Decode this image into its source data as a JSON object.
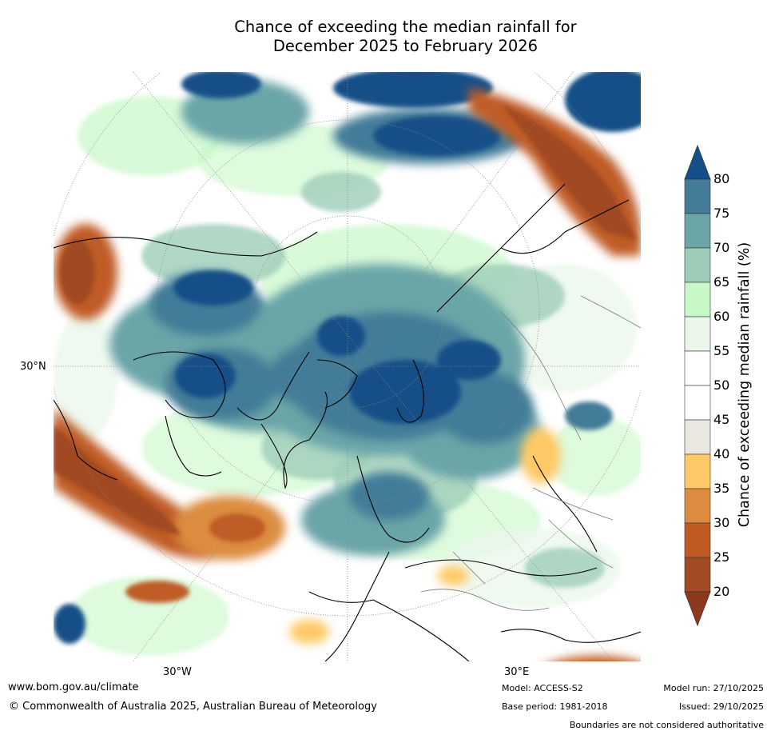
{
  "title": {
    "line1": "Chance of exceeding the median rainfall for",
    "line2": "December 2025 to February 2026"
  },
  "map": {
    "projection": "north-polar-stereographic",
    "lat_labels": [
      {
        "text": "30°N"
      }
    ],
    "lon_labels": [
      {
        "text": "30°W"
      },
      {
        "text": "30°E"
      }
    ],
    "colors": {
      "c20_25": "#a14a24",
      "c25_30": "#c05b26",
      "c30_35": "#dc8c40",
      "c35_40": "#fec966",
      "c40_45": "#ebe7e1",
      "c45_55": "#ffffff",
      "c55_60": "#ebf7eb",
      "c60_65": "#c8f8c8",
      "c65_70": "#9dcdb8",
      "c70_75": "#6ba5a8",
      "c75_80": "#437b98",
      "c80_plus": "#134f88",
      "c_below20": "#8e3820"
    }
  },
  "colorbar": {
    "label": "Chance of exceeding median rainfall (%)",
    "ticks": [
      "80",
      "75",
      "70",
      "65",
      "60",
      "55",
      "50",
      "45",
      "40",
      "35",
      "30",
      "25",
      "20"
    ],
    "segments": [
      {
        "range": "80+",
        "color": "#134f88"
      },
      {
        "range": "75-80",
        "color": "#437b98"
      },
      {
        "range": "70-75",
        "color": "#6ba5a8"
      },
      {
        "range": "65-70",
        "color": "#9dcdb8"
      },
      {
        "range": "60-65",
        "color": "#c8f8c8"
      },
      {
        "range": "55-60",
        "color": "#ebf7eb"
      },
      {
        "range": "50-55",
        "color": "#ffffff"
      },
      {
        "range": "45-50",
        "color": "#ffffff"
      },
      {
        "range": "40-45",
        "color": "#ebe7e1"
      },
      {
        "range": "35-40",
        "color": "#fec966"
      },
      {
        "range": "30-35",
        "color": "#dc8c40"
      },
      {
        "range": "25-30",
        "color": "#c05b26"
      },
      {
        "range": "20-25",
        "color": "#a14a24"
      },
      {
        "range": "<20",
        "color": "#8e3820"
      }
    ]
  },
  "footer": {
    "website": "www.bom.gov.au/climate",
    "copyright": "© Commonwealth of Australia 2025, Australian Bureau of Meteorology",
    "model": "Model: ACCESS-S2",
    "base_period": "Base period: 1981-2018",
    "model_run": "Model run: 27/10/2025",
    "issued": "Issued: 29/10/2025",
    "disclaimer": "Boundaries are not considered authoritative"
  }
}
